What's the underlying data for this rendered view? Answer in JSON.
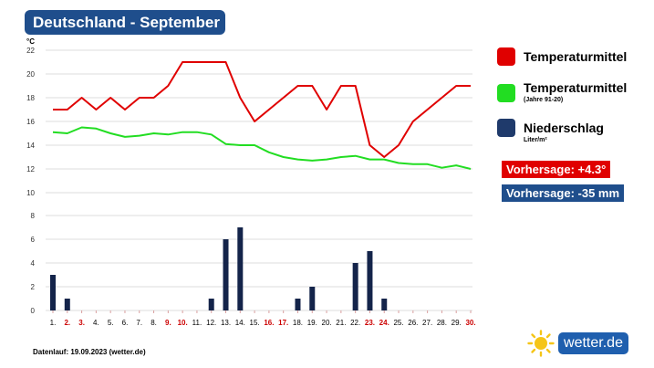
{
  "title": "Deutschland - September",
  "footer": "Datenlauf: 19.09.2023 (wetter.de)",
  "logo": {
    "text": "wetter.de",
    "icon": "sun-icon"
  },
  "legend": [
    {
      "label": "Temperaturmittel",
      "sub": "",
      "color": "#e00000"
    },
    {
      "label": "Temperaturmittel",
      "sub": "(Jahre 91-20)",
      "color": "#22dd22"
    },
    {
      "label": "Niederschlag",
      "sub": "Liter/m²",
      "color": "#1f3a6b"
    }
  ],
  "forecast": {
    "temp": {
      "text": "Vorhersage: +4.3°",
      "color": "#e00000"
    },
    "precip": {
      "text": "Vorhersage: -35 mm",
      "color": "#1f4e8c"
    }
  },
  "colors": {
    "weekend_label": "#cc0000",
    "weekday_label": "#000000"
  },
  "chart_data": {
    "type": "line+bar",
    "ylabel": "°C",
    "temp_ylim": [
      0,
      22
    ],
    "temp_ticks": [
      12,
      14,
      16,
      18,
      20,
      22
    ],
    "precip_ylim": [
      0,
      8
    ],
    "precip_ticks": [
      0,
      2,
      4,
      6,
      8
    ],
    "grid": true,
    "days": [
      "1.",
      "2.",
      "3.",
      "4.",
      "5.",
      "6.",
      "7.",
      "8.",
      "9.",
      "10.",
      "11.",
      "12.",
      "13.",
      "14.",
      "15.",
      "16.",
      "17.",
      "18.",
      "19.",
      "20.",
      "21.",
      "22.",
      "23.",
      "24.",
      "25.",
      "26.",
      "27.",
      "28.",
      "29.",
      "30."
    ],
    "weekend_days": [
      "2.",
      "3.",
      "9.",
      "10.",
      "16.",
      "17.",
      "23.",
      "24.",
      "30."
    ],
    "series": [
      {
        "name": "Temperaturmittel",
        "type": "line",
        "color": "#e00000",
        "values": [
          17,
          17,
          18,
          17,
          18,
          17,
          18,
          18,
          19,
          21,
          21,
          21,
          21,
          18,
          16,
          17,
          18,
          19,
          19,
          17,
          19,
          19,
          14,
          13,
          14,
          16,
          17,
          18,
          19,
          19
        ]
      },
      {
        "name": "Temperaturmittel (Jahre 91-20)",
        "type": "line",
        "color": "#22dd22",
        "values": [
          15.1,
          15.0,
          15.5,
          15.4,
          15.0,
          14.7,
          14.8,
          15.0,
          14.9,
          15.1,
          15.1,
          14.9,
          14.1,
          14.0,
          14.0,
          13.4,
          13.0,
          12.8,
          12.7,
          12.8,
          13.0,
          13.1,
          12.8,
          12.8,
          12.5,
          12.4,
          12.4,
          12.1,
          12.3,
          12.0
        ]
      },
      {
        "name": "Niederschlag",
        "type": "bar",
        "color": "#14244a",
        "values": [
          3,
          1,
          0,
          0,
          0,
          0,
          0,
          0,
          0,
          0,
          0,
          1,
          6,
          7,
          0,
          0,
          0,
          1,
          2,
          0,
          0,
          4,
          5,
          1,
          0,
          0,
          0,
          0,
          0,
          0
        ]
      }
    ]
  }
}
